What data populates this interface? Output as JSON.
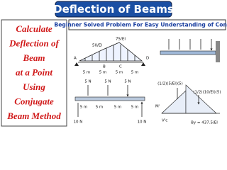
{
  "header": {
    "title": "Deflection of Beams"
  },
  "left_text": {
    "lines": [
      "Calculate",
      "Deflection of",
      "Beam",
      "at a Point",
      "Using",
      "Conjugate",
      "Beam Method"
    ]
  },
  "subtitle": "Beginner Solved Problem For Easy Understanding of Concept",
  "diagrams": {
    "conjugate_load": {
      "loads": [
        "50/EI",
        "75/EI"
      ],
      "points": [
        "A",
        "B",
        "C",
        "D"
      ],
      "spans": [
        "5 m",
        "5 m",
        "5 m",
        "5 m"
      ]
    },
    "real_beam": {
      "loads": [
        "5 N",
        "5 N",
        "5 N"
      ],
      "reactions": [
        "10 N",
        "10 N"
      ],
      "spans": [
        "5 m",
        "5 m",
        "5 m",
        "5 m"
      ]
    },
    "free_body": {
      "labels": [
        "(1/2)(5/EI)(5)",
        "(1/2)(10/EI)(5)",
        "M'",
        "V'c",
        "By = 437.5/EI"
      ]
    }
  }
}
